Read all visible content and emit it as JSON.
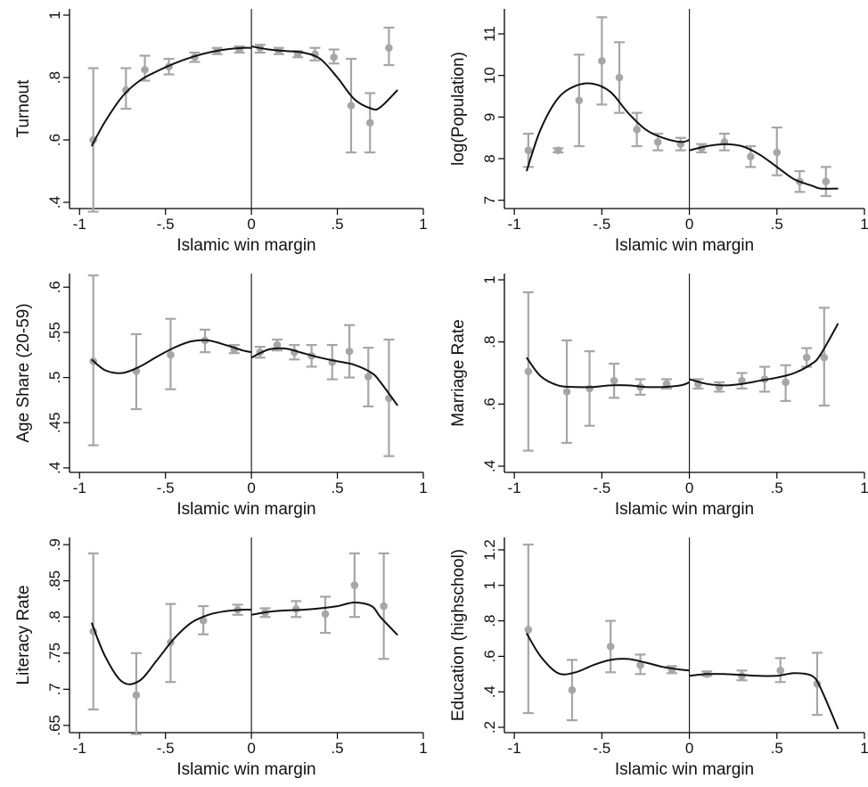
{
  "chart_data": [
    {
      "type": "scatter",
      "xlabel": "Islamic win margin",
      "ylabel": "Turnout",
      "xlim": [
        -1,
        1
      ],
      "ylim": [
        0.38,
        1.02
      ],
      "xticks": [
        "-1",
        "-.5",
        "0",
        ".5",
        "1"
      ],
      "yticks": [
        ".4",
        ".6",
        ".8",
        "1"
      ],
      "ytick_values": [
        0.4,
        0.6,
        0.8,
        1.0
      ],
      "cutoff": 0,
      "binned_means": {
        "x": [
          -0.92,
          -0.73,
          -0.62,
          -0.48,
          -0.33,
          -0.2,
          -0.07,
          0.05,
          0.16,
          0.27,
          0.37,
          0.48,
          0.58,
          0.69,
          0.8
        ],
        "y": [
          0.6,
          0.76,
          0.825,
          0.835,
          0.865,
          0.885,
          0.89,
          0.895,
          0.885,
          0.875,
          0.875,
          0.865,
          0.71,
          0.655,
          0.895
        ],
        "ci_low": [
          0.37,
          0.7,
          0.79,
          0.81,
          0.85,
          0.875,
          0.88,
          0.88,
          0.875,
          0.865,
          0.855,
          0.845,
          0.56,
          0.56,
          0.84
        ],
        "ci_high": [
          0.83,
          0.83,
          0.87,
          0.86,
          0.88,
          0.895,
          0.9,
          0.905,
          0.895,
          0.885,
          0.895,
          0.89,
          0.86,
          0.75,
          0.96
        ]
      },
      "fit_left": {
        "x": [
          -0.93,
          -0.85,
          -0.75,
          -0.65,
          -0.55,
          -0.45,
          -0.35,
          -0.25,
          -0.15,
          -0.05,
          0
        ],
        "y": [
          0.58,
          0.66,
          0.74,
          0.79,
          0.82,
          0.845,
          0.865,
          0.88,
          0.89,
          0.895,
          0.895
        ]
      },
      "fit_right": {
        "x": [
          0,
          0.1,
          0.2,
          0.3,
          0.4,
          0.5,
          0.6,
          0.7,
          0.75,
          0.85
        ],
        "y": [
          0.9,
          0.89,
          0.885,
          0.88,
          0.86,
          0.8,
          0.73,
          0.7,
          0.705,
          0.76
        ]
      }
    },
    {
      "type": "scatter",
      "xlabel": "Islamic win margin",
      "ylabel": "log(Population)",
      "xlim": [
        -1,
        1
      ],
      "ylim": [
        6.8,
        11.6
      ],
      "xticks": [
        "-1",
        "-.5",
        "0",
        ".5",
        "1"
      ],
      "yticks": [
        "7",
        "8",
        "9",
        "10",
        "11"
      ],
      "ytick_values": [
        7,
        8,
        9,
        10,
        11
      ],
      "cutoff": 0,
      "binned_means": {
        "x": [
          -0.92,
          -0.75,
          -0.63,
          -0.5,
          -0.4,
          -0.3,
          -0.18,
          -0.05,
          0.07,
          0.2,
          0.35,
          0.5,
          0.63,
          0.78
        ],
        "y": [
          8.2,
          8.2,
          9.4,
          10.35,
          9.95,
          8.7,
          8.4,
          8.35,
          8.25,
          8.4,
          8.05,
          8.15,
          7.45,
          7.45
        ],
        "ci_low": [
          7.8,
          8.15,
          8.3,
          9.3,
          9.1,
          8.3,
          8.2,
          8.2,
          8.15,
          8.2,
          7.8,
          7.6,
          7.2,
          7.1
        ],
        "ci_high": [
          8.6,
          8.25,
          10.5,
          11.4,
          10.8,
          9.1,
          8.6,
          8.5,
          8.35,
          8.6,
          8.3,
          8.75,
          7.7,
          7.8
        ]
      },
      "fit_left": {
        "x": [
          -0.93,
          -0.85,
          -0.75,
          -0.65,
          -0.55,
          -0.45,
          -0.35,
          -0.25,
          -0.15,
          -0.05,
          0
        ],
        "y": [
          7.7,
          8.7,
          9.45,
          9.75,
          9.8,
          9.6,
          9.1,
          8.7,
          8.5,
          8.4,
          8.45
        ]
      },
      "fit_right": {
        "x": [
          0,
          0.1,
          0.2,
          0.3,
          0.4,
          0.5,
          0.6,
          0.7,
          0.75,
          0.85
        ],
        "y": [
          8.2,
          8.3,
          8.35,
          8.3,
          8.1,
          7.8,
          7.5,
          7.35,
          7.28,
          7.28
        ]
      }
    },
    {
      "type": "scatter",
      "xlabel": "Islamic win margin",
      "ylabel": "Age Share (20-59)",
      "xlim": [
        -1,
        1
      ],
      "ylim": [
        0.395,
        0.615
      ],
      "xticks": [
        "-1",
        "-.5",
        "0",
        ".5",
        "1"
      ],
      "yticks": [
        ".4",
        ".45",
        ".5",
        ".55",
        ".6"
      ],
      "ytick_values": [
        0.4,
        0.45,
        0.5,
        0.55,
        0.6
      ],
      "cutoff": 0,
      "binned_means": {
        "x": [
          -0.92,
          -0.67,
          -0.47,
          -0.27,
          -0.1,
          0.05,
          0.15,
          0.25,
          0.35,
          0.47,
          0.57,
          0.68,
          0.8
        ],
        "y": [
          0.518,
          0.507,
          0.525,
          0.541,
          0.531,
          0.528,
          0.536,
          0.528,
          0.524,
          0.517,
          0.529,
          0.501,
          0.477
        ],
        "ci_low": [
          0.425,
          0.465,
          0.487,
          0.528,
          0.527,
          0.522,
          0.53,
          0.52,
          0.512,
          0.498,
          0.5,
          0.468,
          0.413
        ],
        "ci_high": [
          0.613,
          0.548,
          0.565,
          0.553,
          0.536,
          0.534,
          0.542,
          0.536,
          0.536,
          0.536,
          0.558,
          0.533,
          0.542
        ]
      },
      "fit_left": {
        "x": [
          -0.93,
          -0.85,
          -0.75,
          -0.65,
          -0.55,
          -0.45,
          -0.35,
          -0.25,
          -0.15,
          -0.05,
          0
        ],
        "y": [
          0.52,
          0.508,
          0.505,
          0.512,
          0.523,
          0.533,
          0.54,
          0.541,
          0.536,
          0.53,
          0.528
        ]
      },
      "fit_right": {
        "x": [
          0,
          0.1,
          0.2,
          0.3,
          0.4,
          0.5,
          0.6,
          0.7,
          0.75,
          0.85
        ],
        "y": [
          0.522,
          0.531,
          0.532,
          0.527,
          0.522,
          0.518,
          0.514,
          0.505,
          0.495,
          0.469
        ]
      }
    },
    {
      "type": "scatter",
      "xlabel": "Islamic win margin",
      "ylabel": "Marriage Rate",
      "xlim": [
        -1,
        1
      ],
      "ylim": [
        0.38,
        1.02
      ],
      "xticks": [
        "-1",
        "-.5",
        "0",
        ".5",
        "1"
      ],
      "yticks": [
        ".4",
        ".6",
        ".8",
        "1"
      ],
      "ytick_values": [
        0.4,
        0.6,
        0.8,
        1.0
      ],
      "cutoff": 0,
      "binned_means": {
        "x": [
          -0.92,
          -0.7,
          -0.57,
          -0.43,
          -0.28,
          -0.13,
          0.05,
          0.17,
          0.3,
          0.43,
          0.55,
          0.67,
          0.77
        ],
        "y": [
          0.705,
          0.64,
          0.65,
          0.675,
          0.655,
          0.665,
          0.665,
          0.655,
          0.675,
          0.68,
          0.67,
          0.75,
          0.75
        ],
        "ci_low": [
          0.45,
          0.475,
          0.53,
          0.62,
          0.63,
          0.65,
          0.65,
          0.64,
          0.65,
          0.64,
          0.61,
          0.72,
          0.595
        ],
        "ci_high": [
          0.96,
          0.805,
          0.77,
          0.73,
          0.68,
          0.68,
          0.68,
          0.67,
          0.7,
          0.72,
          0.725,
          0.78,
          0.91
        ]
      },
      "fit_left": {
        "x": [
          -0.93,
          -0.85,
          -0.75,
          -0.65,
          -0.55,
          -0.45,
          -0.35,
          -0.25,
          -0.15,
          -0.05,
          0
        ],
        "y": [
          0.75,
          0.69,
          0.66,
          0.655,
          0.655,
          0.66,
          0.66,
          0.655,
          0.655,
          0.66,
          0.67
        ]
      },
      "fit_right": {
        "x": [
          0,
          0.1,
          0.2,
          0.3,
          0.4,
          0.5,
          0.6,
          0.7,
          0.75,
          0.85
        ],
        "y": [
          0.68,
          0.665,
          0.66,
          0.665,
          0.675,
          0.685,
          0.7,
          0.73,
          0.76,
          0.86
        ]
      }
    },
    {
      "type": "scatter",
      "xlabel": "Islamic win margin",
      "ylabel": "Literacy Rate",
      "xlim": [
        -1,
        1
      ],
      "ylim": [
        0.64,
        0.91
      ],
      "xticks": [
        "-1",
        "-.5",
        "0",
        ".5",
        "1"
      ],
      "yticks": [
        ".65",
        ".7",
        ".75",
        ".8",
        ".85",
        ".9"
      ],
      "ytick_values": [
        0.65,
        0.7,
        0.75,
        0.8,
        0.85,
        0.9
      ],
      "cutoff": 0,
      "binned_means": {
        "x": [
          -0.92,
          -0.67,
          -0.47,
          -0.28,
          -0.08,
          0.08,
          0.26,
          0.43,
          0.6,
          0.77
        ],
        "y": [
          0.78,
          0.692,
          0.765,
          0.795,
          0.81,
          0.806,
          0.811,
          0.804,
          0.844,
          0.815
        ],
        "ci_low": [
          0.672,
          0.638,
          0.71,
          0.776,
          0.803,
          0.8,
          0.8,
          0.778,
          0.8,
          0.742
        ],
        "ci_high": [
          0.888,
          0.75,
          0.818,
          0.815,
          0.817,
          0.812,
          0.822,
          0.828,
          0.888,
          0.888
        ]
      },
      "fit_left": {
        "x": [
          -0.93,
          -0.85,
          -0.75,
          -0.65,
          -0.55,
          -0.45,
          -0.35,
          -0.25,
          -0.15,
          -0.05,
          0
        ],
        "y": [
          0.792,
          0.745,
          0.71,
          0.712,
          0.74,
          0.77,
          0.792,
          0.803,
          0.808,
          0.81,
          0.81
        ]
      },
      "fit_right": {
        "x": [
          0,
          0.1,
          0.2,
          0.3,
          0.4,
          0.5,
          0.6,
          0.7,
          0.75,
          0.85
        ],
        "y": [
          0.803,
          0.807,
          0.809,
          0.81,
          0.812,
          0.815,
          0.82,
          0.815,
          0.8,
          0.775
        ]
      }
    },
    {
      "type": "scatter",
      "xlabel": "Islamic win margin",
      "ylabel": "Education (highschool)",
      "xlim": [
        -1,
        1
      ],
      "ylim": [
        0.17,
        1.27
      ],
      "xticks": [
        "-1",
        "-.5",
        "0",
        ".5",
        "1"
      ],
      "yticks": [
        ".2",
        ".4",
        ".6",
        ".8",
        "1",
        "1.2"
      ],
      "ytick_values": [
        0.2,
        0.4,
        0.6,
        0.8,
        1.0,
        1.2
      ],
      "cutoff": 0,
      "binned_means": {
        "x": [
          -0.92,
          -0.67,
          -0.45,
          -0.28,
          -0.1,
          0.1,
          0.3,
          0.52,
          0.73
        ],
        "y": [
          0.75,
          0.41,
          0.655,
          0.55,
          0.525,
          0.5,
          0.49,
          0.52,
          0.445
        ],
        "ci_low": [
          0.28,
          0.24,
          0.51,
          0.5,
          0.505,
          0.49,
          0.465,
          0.455,
          0.27
        ],
        "ci_high": [
          1.23,
          0.58,
          0.8,
          0.61,
          0.545,
          0.515,
          0.52,
          0.59,
          0.62
        ]
      },
      "fit_left": {
        "x": [
          -0.93,
          -0.85,
          -0.75,
          -0.65,
          -0.55,
          -0.45,
          -0.35,
          -0.25,
          -0.15,
          -0.05,
          0
        ],
        "y": [
          0.73,
          0.6,
          0.505,
          0.51,
          0.55,
          0.58,
          0.585,
          0.565,
          0.54,
          0.525,
          0.52
        ]
      },
      "fit_right": {
        "x": [
          0,
          0.1,
          0.2,
          0.3,
          0.4,
          0.5,
          0.6,
          0.7,
          0.75,
          0.85
        ],
        "y": [
          0.49,
          0.5,
          0.5,
          0.495,
          0.49,
          0.49,
          0.505,
          0.49,
          0.42,
          0.19
        ]
      }
    }
  ]
}
